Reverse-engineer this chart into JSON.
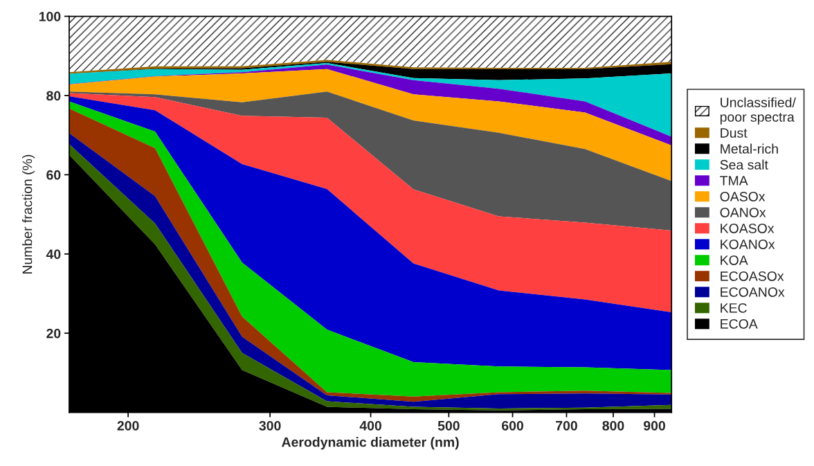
{
  "chart_data": {
    "type": "area",
    "stacked": true,
    "xlabel": "Aerodynamic diameter (nm)",
    "ylabel": "Number fraction (%)",
    "x": [
      169,
      216,
      277,
      353,
      452,
      577,
      738,
      945
    ],
    "log": "x",
    "xlim": [
      169,
      945
    ],
    "xticks": [
      200,
      300,
      400,
      500,
      600,
      700,
      800,
      900
    ],
    "ylim": [
      0,
      100
    ],
    "yticks": [
      20,
      40,
      60,
      80,
      100
    ],
    "grid": false,
    "legend": "right",
    "series": [
      {
        "name": "ECOA",
        "color": "#000000",
        "values": [
          65.0,
          42.4,
          10.7,
          1.4,
          0.8,
          0.5,
          0.8,
          0.9
        ]
      },
      {
        "name": "KEC",
        "color": "#336600",
        "values": [
          2.7,
          5.3,
          4.3,
          1.4,
          0.6,
          0.5,
          0.4,
          1.0
        ]
      },
      {
        "name": "ECOANOx",
        "color": "#000099",
        "values": [
          2.8,
          6.9,
          4.1,
          1.5,
          1.3,
          3.6,
          3.6,
          2.6
        ]
      },
      {
        "name": "ECOASOx",
        "color": "#993300",
        "values": [
          6.2,
          12.1,
          5.1,
          0.8,
          1.3,
          0.5,
          0.7,
          0.4
        ]
      },
      {
        "name": "KOA",
        "color": "#00cc00",
        "values": [
          1.8,
          4.2,
          13.6,
          15.8,
          8.7,
          6.5,
          5.9,
          5.8
        ]
      },
      {
        "name": "KOANOx",
        "color": "#0000cc",
        "values": [
          1.3,
          5.4,
          24.9,
          35.5,
          24.9,
          19.2,
          17.1,
          14.6
        ]
      },
      {
        "name": "KOASOx",
        "color": "#ff4040",
        "values": [
          0.8,
          3.3,
          12.2,
          18.0,
          18.7,
          18.7,
          19.4,
          20.6
        ]
      },
      {
        "name": "OANOx",
        "color": "#555555",
        "values": [
          0.4,
          0.7,
          3.4,
          6.6,
          17.4,
          21.1,
          18.6,
          12.5
        ]
      },
      {
        "name": "OASOx",
        "color": "#ffa500",
        "values": [
          1.8,
          4.5,
          7.3,
          5.7,
          6.6,
          7.9,
          9.2,
          9.0
        ]
      },
      {
        "name": "TMA",
        "color": "#6600cc",
        "values": [
          0.1,
          0.1,
          0.3,
          1.1,
          3.6,
          3.2,
          2.8,
          2.2
        ]
      },
      {
        "name": "Sea salt",
        "color": "#00cccc",
        "values": [
          2.6,
          1.8,
          0.6,
          0.4,
          0.5,
          2.2,
          5.8,
          16.0
        ]
      },
      {
        "name": "Metal-rich",
        "color": "#000000",
        "values": [
          0.0,
          0.1,
          0.4,
          0.3,
          2.3,
          2.8,
          2.4,
          2.3
        ]
      },
      {
        "name": "Dust",
        "color": "#996600",
        "values": [
          0.4,
          0.6,
          0.5,
          0.5,
          0.4,
          0.3,
          0.3,
          0.6
        ]
      },
      {
        "name": "Unclassified/\npoor spectra",
        "color": "#ffffff",
        "values": [
          14.1,
          12.6,
          12.6,
          11.0,
          12.9,
          13.0,
          13.0,
          11.5
        ]
      }
    ]
  }
}
